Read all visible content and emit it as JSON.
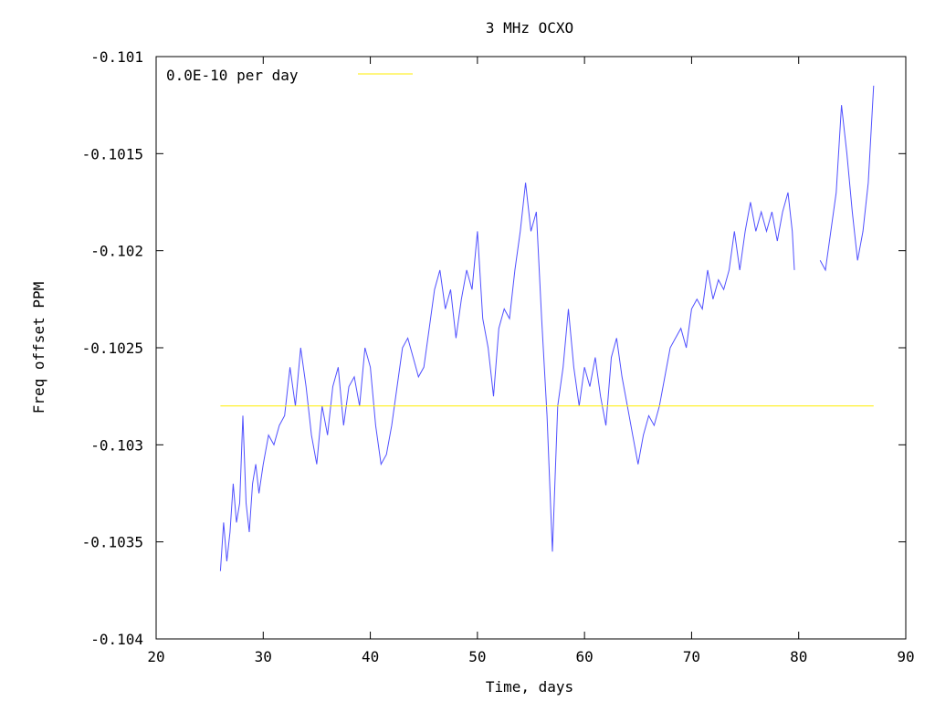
{
  "chart_data": {
    "type": "line",
    "title": "3 MHz OCXO",
    "xlabel": "Time, days",
    "ylabel": "Freq offset PPM",
    "xlim": [
      20,
      90
    ],
    "ylim": [
      -0.104,
      -0.101
    ],
    "xticks": [
      20,
      30,
      40,
      50,
      60,
      70,
      80,
      90
    ],
    "xtick_labels": [
      "20",
      "30",
      "40",
      "50",
      "60",
      "70",
      "80",
      "90"
    ],
    "yticks": [
      -0.104,
      -0.1035,
      -0.103,
      -0.1025,
      -0.102,
      -0.1015,
      -0.101
    ],
    "ytick_labels": [
      "-0.104",
      "-0.1035",
      "-0.103",
      "-0.1025",
      "-0.102",
      "-0.1015",
      "-0.101"
    ],
    "grid": false,
    "legend_position": "top-left",
    "series": [
      {
        "name": "",
        "color": "#5050ff",
        "points": [
          [
            26.0,
            -0.10365
          ],
          [
            26.3,
            -0.1034
          ],
          [
            26.6,
            -0.1036
          ],
          [
            26.9,
            -0.10345
          ],
          [
            27.2,
            -0.1032
          ],
          [
            27.5,
            -0.1034
          ],
          [
            27.8,
            -0.1033
          ],
          [
            28.1,
            -0.10285
          ],
          [
            28.4,
            -0.1033
          ],
          [
            28.7,
            -0.10345
          ],
          [
            29.0,
            -0.1032
          ],
          [
            29.3,
            -0.1031
          ],
          [
            29.6,
            -0.10325
          ],
          [
            30.0,
            -0.1031
          ],
          [
            30.5,
            -0.10295
          ],
          [
            31.0,
            -0.103
          ],
          [
            31.5,
            -0.1029
          ],
          [
            32.0,
            -0.10285
          ],
          [
            32.5,
            -0.1026
          ],
          [
            33.0,
            -0.1028
          ],
          [
            33.5,
            -0.1025
          ],
          [
            34.0,
            -0.1027
          ],
          [
            34.5,
            -0.10295
          ],
          [
            35.0,
            -0.1031
          ],
          [
            35.5,
            -0.1028
          ],
          [
            36.0,
            -0.10295
          ],
          [
            36.5,
            -0.1027
          ],
          [
            37.0,
            -0.1026
          ],
          [
            37.5,
            -0.1029
          ],
          [
            38.0,
            -0.1027
          ],
          [
            38.5,
            -0.10265
          ],
          [
            39.0,
            -0.1028
          ],
          [
            39.5,
            -0.1025
          ],
          [
            40.0,
            -0.1026
          ],
          [
            40.5,
            -0.1029
          ],
          [
            41.0,
            -0.1031
          ],
          [
            41.5,
            -0.10305
          ],
          [
            42.0,
            -0.1029
          ],
          [
            42.5,
            -0.1027
          ],
          [
            43.0,
            -0.1025
          ],
          [
            43.5,
            -0.10245
          ],
          [
            44.0,
            -0.10255
          ],
          [
            44.5,
            -0.10265
          ],
          [
            45.0,
            -0.1026
          ],
          [
            45.5,
            -0.1024
          ],
          [
            46.0,
            -0.1022
          ],
          [
            46.5,
            -0.1021
          ],
          [
            47.0,
            -0.1023
          ],
          [
            47.5,
            -0.1022
          ],
          [
            48.0,
            -0.10245
          ],
          [
            48.5,
            -0.10225
          ],
          [
            49.0,
            -0.1021
          ],
          [
            49.5,
            -0.1022
          ],
          [
            50.0,
            -0.1019
          ],
          [
            50.5,
            -0.10235
          ],
          [
            51.0,
            -0.1025
          ],
          [
            51.5,
            -0.10275
          ],
          [
            52.0,
            -0.1024
          ],
          [
            52.5,
            -0.1023
          ],
          [
            53.0,
            -0.10235
          ],
          [
            53.5,
            -0.1021
          ],
          [
            54.0,
            -0.1019
          ],
          [
            54.5,
            -0.10165
          ],
          [
            55.0,
            -0.1019
          ],
          [
            55.5,
            -0.1018
          ],
          [
            56.0,
            -0.10235
          ],
          [
            56.5,
            -0.10285
          ],
          [
            57.0,
            -0.10355
          ],
          [
            57.5,
            -0.1028
          ],
          [
            58.0,
            -0.1026
          ],
          [
            58.5,
            -0.1023
          ],
          [
            59.0,
            -0.1026
          ],
          [
            59.5,
            -0.1028
          ],
          [
            60.0,
            -0.1026
          ],
          [
            60.5,
            -0.1027
          ],
          [
            61.0,
            -0.10255
          ],
          [
            61.5,
            -0.10275
          ],
          [
            62.0,
            -0.1029
          ],
          [
            62.5,
            -0.10255
          ],
          [
            63.0,
            -0.10245
          ],
          [
            63.5,
            -0.10265
          ],
          [
            64.0,
            -0.1028
          ],
          [
            64.5,
            -0.10295
          ],
          [
            65.0,
            -0.1031
          ],
          [
            65.5,
            -0.10295
          ],
          [
            66.0,
            -0.10285
          ],
          [
            66.5,
            -0.1029
          ],
          [
            67.0,
            -0.1028
          ],
          [
            67.5,
            -0.10265
          ],
          [
            68.0,
            -0.1025
          ],
          [
            68.5,
            -0.10245
          ],
          [
            69.0,
            -0.1024
          ],
          [
            69.5,
            -0.1025
          ],
          [
            70.0,
            -0.1023
          ],
          [
            70.5,
            -0.10225
          ],
          [
            71.0,
            -0.1023
          ],
          [
            71.5,
            -0.1021
          ],
          [
            72.0,
            -0.10225
          ],
          [
            72.5,
            -0.10215
          ],
          [
            73.0,
            -0.1022
          ],
          [
            73.5,
            -0.1021
          ],
          [
            74.0,
            -0.1019
          ],
          [
            74.5,
            -0.1021
          ],
          [
            75.0,
            -0.1019
          ],
          [
            75.5,
            -0.10175
          ],
          [
            76.0,
            -0.1019
          ],
          [
            76.5,
            -0.1018
          ],
          [
            77.0,
            -0.1019
          ],
          [
            77.5,
            -0.1018
          ],
          [
            78.0,
            -0.10195
          ],
          [
            78.5,
            -0.1018
          ],
          [
            79.0,
            -0.1017
          ],
          [
            79.4,
            -0.1019
          ],
          [
            79.6,
            -0.1021
          ],
          null,
          [
            82.0,
            -0.10205
          ],
          [
            82.5,
            -0.1021
          ],
          [
            83.0,
            -0.1019
          ],
          [
            83.5,
            -0.1017
          ],
          [
            84.0,
            -0.10125
          ],
          [
            84.5,
            -0.1015
          ],
          [
            85.0,
            -0.1018
          ],
          [
            85.5,
            -0.10205
          ],
          [
            86.0,
            -0.1019
          ],
          [
            86.5,
            -0.10165
          ],
          [
            87.0,
            -0.10115
          ]
        ]
      },
      {
        "name": "0.0E-10 per day",
        "color": "#ffee00",
        "points": [
          [
            26.0,
            -0.1028
          ],
          [
            87.0,
            -0.1028
          ]
        ]
      }
    ]
  }
}
